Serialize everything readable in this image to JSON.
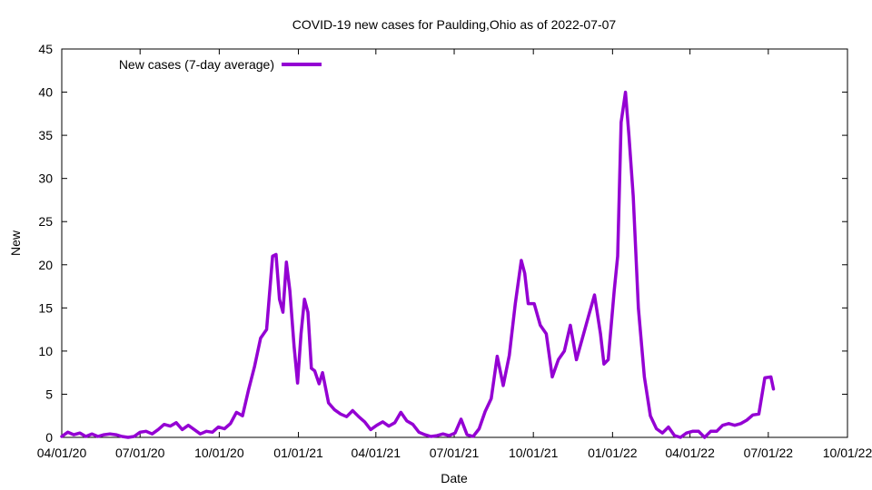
{
  "chart_data": {
    "type": "line",
    "title": "COVID-19 new cases for Paulding,Ohio as of 2022-07-07",
    "xlabel": "Date",
    "ylabel": "New",
    "xlim": [
      "2020-04-01",
      "2022-10-01"
    ],
    "ylim": [
      0,
      45
    ],
    "x_ticks": [
      "04/01/20",
      "07/01/20",
      "10/01/20",
      "01/01/21",
      "04/01/21",
      "07/01/21",
      "10/01/21",
      "01/01/22",
      "04/01/22",
      "07/01/22",
      "10/01/22"
    ],
    "y_ticks": [
      0,
      5,
      10,
      15,
      20,
      25,
      30,
      35,
      40,
      45
    ],
    "grid": false,
    "legend_position": "top-left",
    "colors": {
      "series": "#9400d3",
      "axes": "#000000"
    },
    "series": [
      {
        "name": "New cases (7-day average)",
        "color": "#9400d3",
        "points": [
          [
            "2020-04-01",
            0.1
          ],
          [
            "2020-04-08",
            0.6
          ],
          [
            "2020-04-15",
            0.3
          ],
          [
            "2020-04-22",
            0.5
          ],
          [
            "2020-04-29",
            0.1
          ],
          [
            "2020-05-06",
            0.4
          ],
          [
            "2020-05-13",
            0.1
          ],
          [
            "2020-05-20",
            0.3
          ],
          [
            "2020-05-27",
            0.4
          ],
          [
            "2020-06-03",
            0.3
          ],
          [
            "2020-06-10",
            0.1
          ],
          [
            "2020-06-17",
            0.0
          ],
          [
            "2020-06-24",
            0.1
          ],
          [
            "2020-07-01",
            0.6
          ],
          [
            "2020-07-08",
            0.7
          ],
          [
            "2020-07-15",
            0.4
          ],
          [
            "2020-07-22",
            0.9
          ],
          [
            "2020-07-29",
            1.5
          ],
          [
            "2020-08-05",
            1.3
          ],
          [
            "2020-08-12",
            1.7
          ],
          [
            "2020-08-19",
            0.9
          ],
          [
            "2020-08-26",
            1.4
          ],
          [
            "2020-09-02",
            0.9
          ],
          [
            "2020-09-09",
            0.4
          ],
          [
            "2020-09-16",
            0.7
          ],
          [
            "2020-09-23",
            0.6
          ],
          [
            "2020-09-30",
            1.2
          ],
          [
            "2020-10-07",
            1.0
          ],
          [
            "2020-10-14",
            1.6
          ],
          [
            "2020-10-21",
            2.9
          ],
          [
            "2020-10-28",
            2.5
          ],
          [
            "2020-11-04",
            5.5
          ],
          [
            "2020-11-11",
            8.2
          ],
          [
            "2020-11-18",
            11.5
          ],
          [
            "2020-11-25",
            12.5
          ],
          [
            "2020-12-02",
            21.0
          ],
          [
            "2020-12-06",
            21.2
          ],
          [
            "2020-12-10",
            16.0
          ],
          [
            "2020-12-14",
            14.5
          ],
          [
            "2020-12-18",
            20.3
          ],
          [
            "2020-12-22",
            17.0
          ],
          [
            "2020-12-27",
            10.5
          ],
          [
            "2020-12-31",
            6.3
          ],
          [
            "2021-01-04",
            12.0
          ],
          [
            "2021-01-08",
            16.0
          ],
          [
            "2021-01-12",
            14.5
          ],
          [
            "2021-01-16",
            8.0
          ],
          [
            "2021-01-20",
            7.7
          ],
          [
            "2021-01-25",
            6.2
          ],
          [
            "2021-01-29",
            7.5
          ],
          [
            "2021-02-05",
            4.0
          ],
          [
            "2021-02-12",
            3.2
          ],
          [
            "2021-02-19",
            2.7
          ],
          [
            "2021-02-26",
            2.4
          ],
          [
            "2021-03-05",
            3.1
          ],
          [
            "2021-03-12",
            2.4
          ],
          [
            "2021-03-19",
            1.8
          ],
          [
            "2021-03-26",
            0.9
          ],
          [
            "2021-04-02",
            1.4
          ],
          [
            "2021-04-09",
            1.8
          ],
          [
            "2021-04-16",
            1.3
          ],
          [
            "2021-04-23",
            1.7
          ],
          [
            "2021-04-30",
            2.9
          ],
          [
            "2021-05-07",
            1.9
          ],
          [
            "2021-05-14",
            1.5
          ],
          [
            "2021-05-21",
            0.6
          ],
          [
            "2021-05-28",
            0.3
          ],
          [
            "2021-06-04",
            0.1
          ],
          [
            "2021-06-11",
            0.2
          ],
          [
            "2021-06-18",
            0.4
          ],
          [
            "2021-06-25",
            0.2
          ],
          [
            "2021-07-02",
            0.5
          ],
          [
            "2021-07-09",
            2.1
          ],
          [
            "2021-07-16",
            0.3
          ],
          [
            "2021-07-23",
            0.1
          ],
          [
            "2021-07-30",
            1.0
          ],
          [
            "2021-08-06",
            3.0
          ],
          [
            "2021-08-13",
            4.5
          ],
          [
            "2021-08-20",
            9.4
          ],
          [
            "2021-08-27",
            6.0
          ],
          [
            "2021-09-03",
            9.5
          ],
          [
            "2021-09-10",
            15.5
          ],
          [
            "2021-09-17",
            20.5
          ],
          [
            "2021-09-21",
            19.0
          ],
          [
            "2021-09-25",
            15.5
          ],
          [
            "2021-10-02",
            15.5
          ],
          [
            "2021-10-09",
            13.0
          ],
          [
            "2021-10-16",
            12.0
          ],
          [
            "2021-10-23",
            7.0
          ],
          [
            "2021-10-30",
            9.0
          ],
          [
            "2021-11-06",
            10.0
          ],
          [
            "2021-11-13",
            13.0
          ],
          [
            "2021-11-20",
            9.0
          ],
          [
            "2021-11-27",
            11.5
          ],
          [
            "2021-12-04",
            14.0
          ],
          [
            "2021-12-11",
            16.5
          ],
          [
            "2021-12-18",
            12.0
          ],
          [
            "2021-12-22",
            8.5
          ],
          [
            "2021-12-27",
            9.0
          ],
          [
            "2022-01-03",
            17.0
          ],
          [
            "2022-01-07",
            21.0
          ],
          [
            "2022-01-11",
            36.5
          ],
          [
            "2022-01-16",
            40.0
          ],
          [
            "2022-01-20",
            35.0
          ],
          [
            "2022-01-25",
            28.0
          ],
          [
            "2022-01-31",
            15.0
          ],
          [
            "2022-02-07",
            7.0
          ],
          [
            "2022-02-14",
            2.5
          ],
          [
            "2022-02-21",
            1.0
          ],
          [
            "2022-02-28",
            0.5
          ],
          [
            "2022-03-07",
            1.2
          ],
          [
            "2022-03-14",
            0.2
          ],
          [
            "2022-03-21",
            0.0
          ],
          [
            "2022-03-28",
            0.5
          ],
          [
            "2022-04-04",
            0.7
          ],
          [
            "2022-04-11",
            0.7
          ],
          [
            "2022-04-18",
            0.0
          ],
          [
            "2022-04-25",
            0.7
          ],
          [
            "2022-05-02",
            0.7
          ],
          [
            "2022-05-09",
            1.4
          ],
          [
            "2022-05-16",
            1.6
          ],
          [
            "2022-05-23",
            1.4
          ],
          [
            "2022-05-30",
            1.6
          ],
          [
            "2022-06-06",
            2.0
          ],
          [
            "2022-06-13",
            2.6
          ],
          [
            "2022-06-20",
            2.7
          ],
          [
            "2022-06-27",
            6.9
          ],
          [
            "2022-07-04",
            7.0
          ],
          [
            "2022-07-07",
            5.6
          ]
        ]
      }
    ]
  }
}
